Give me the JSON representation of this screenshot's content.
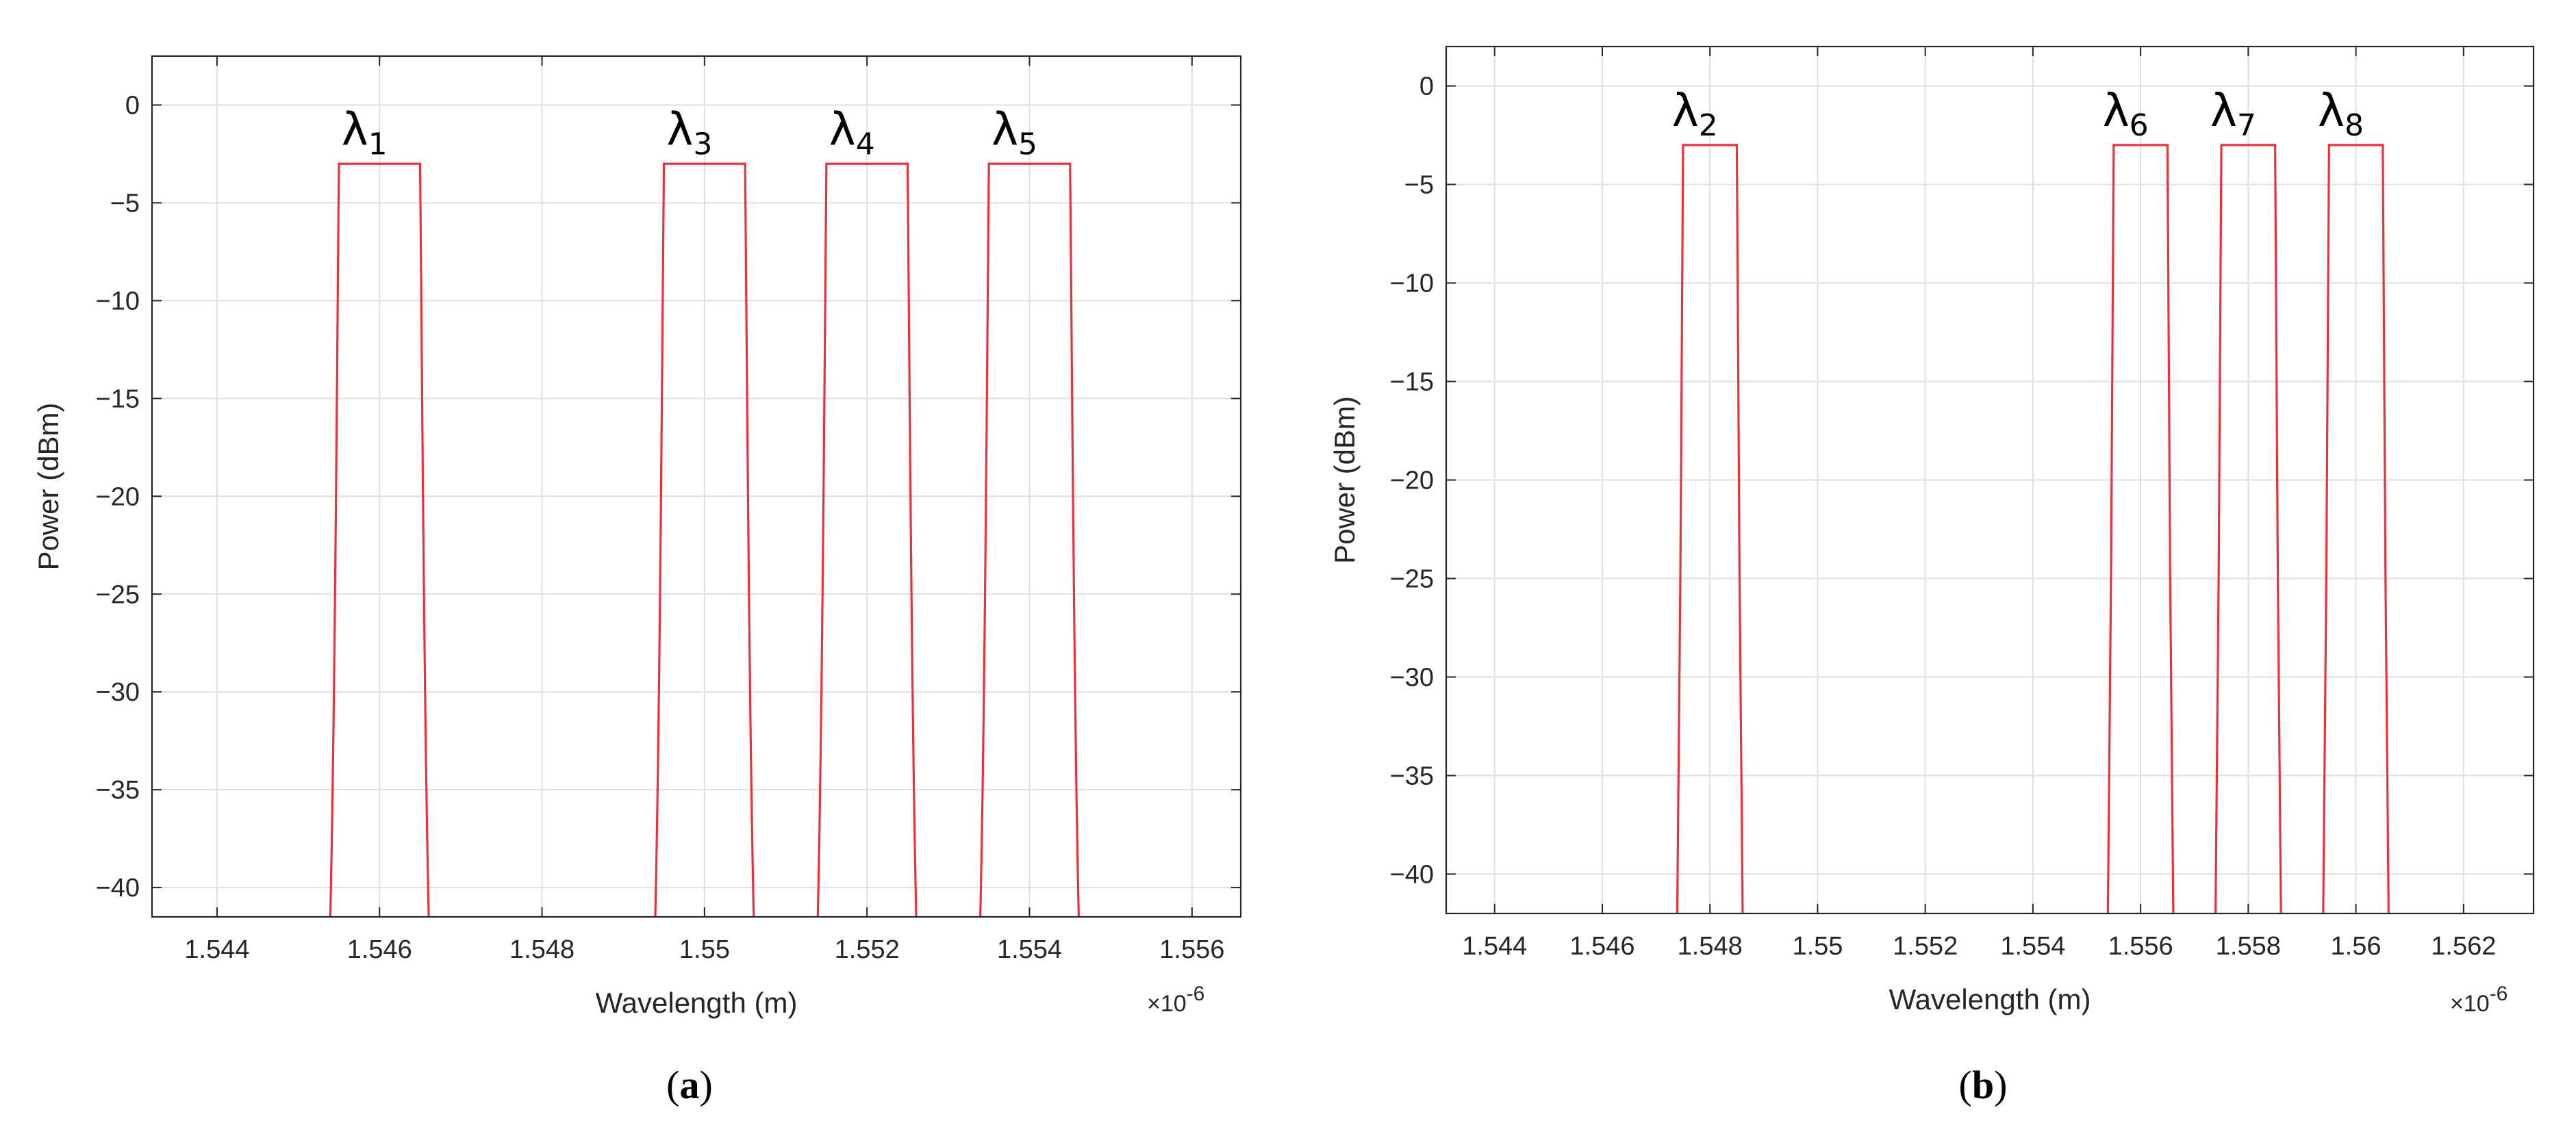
{
  "chart_data": [
    {
      "type": "line",
      "panel_label": {
        "open": "(",
        "letter": "a",
        "close": ")"
      },
      "xlabel": "Wavelength (m)",
      "ylabel": "Power (dBm)",
      "x_exponent": {
        "base": "×10",
        "power": "-6"
      },
      "xlim": [
        1.5432,
        1.5566
      ],
      "ylim": [
        -41.5,
        2.5
      ],
      "xticks": [
        1.544,
        1.546,
        1.548,
        1.55,
        1.552,
        1.554,
        1.556
      ],
      "xtick_labels": [
        "1.544",
        "1.546",
        "1.548",
        "1.55",
        "1.552",
        "1.554",
        "1.556"
      ],
      "yticks": [
        0,
        -5,
        -10,
        -15,
        -20,
        -25,
        -30,
        -35,
        -40
      ],
      "ytick_labels": [
        "0",
        "−5",
        "−10",
        "−15",
        "−20",
        "−25",
        "−30",
        "−35",
        "−40"
      ],
      "grid": true,
      "line_color": "#e8333a",
      "peak_power": -3,
      "series": [
        {
          "name": "λ1",
          "symbol": "λ",
          "sub": "1",
          "center": 1.546,
          "width": 1.0
        },
        {
          "name": "λ3",
          "symbol": "λ",
          "sub": "3",
          "center": 1.55,
          "width": 1.0
        },
        {
          "name": "λ4",
          "symbol": "λ",
          "sub": "4",
          "center": 1.552,
          "width": 1.0
        },
        {
          "name": "λ5",
          "symbol": "λ",
          "sub": "5",
          "center": 1.554,
          "width": 1.0
        }
      ]
    },
    {
      "type": "line",
      "panel_label": {
        "open": "(",
        "letter": "b",
        "close": ")"
      },
      "xlabel": "Wavelength (m)",
      "ylabel": "Power (dBm)",
      "x_exponent": {
        "base": "×10",
        "power": "-6"
      },
      "xlim": [
        1.5431,
        1.5633
      ],
      "ylim": [
        -42,
        2
      ],
      "xticks": [
        1.544,
        1.546,
        1.548,
        1.55,
        1.552,
        1.554,
        1.556,
        1.558,
        1.56,
        1.562
      ],
      "xtick_labels": [
        "1.544",
        "1.546",
        "1.548",
        "1.55",
        "1.552",
        "1.554",
        "1.556",
        "1.558",
        "1.56",
        "1.562"
      ],
      "yticks": [
        0,
        -5,
        -10,
        -15,
        -20,
        -25,
        -30,
        -35,
        -40
      ],
      "ytick_labels": [
        "0",
        "−5",
        "−10",
        "−15",
        "−20",
        "−25",
        "−30",
        "−35",
        "−40"
      ],
      "grid": true,
      "line_color": "#e8333a",
      "peak_power": -3,
      "series": [
        {
          "name": "λ2",
          "symbol": "λ",
          "sub": "2",
          "center": 1.548,
          "width": 1.0
        },
        {
          "name": "λ6",
          "symbol": "λ",
          "sub": "6",
          "center": 1.556,
          "width": 1.0
        },
        {
          "name": "λ7",
          "symbol": "λ",
          "sub": "7",
          "center": 1.558,
          "width": 1.0
        },
        {
          "name": "λ8",
          "symbol": "λ",
          "sub": "8",
          "center": 1.56,
          "width": 1.0
        }
      ]
    }
  ]
}
